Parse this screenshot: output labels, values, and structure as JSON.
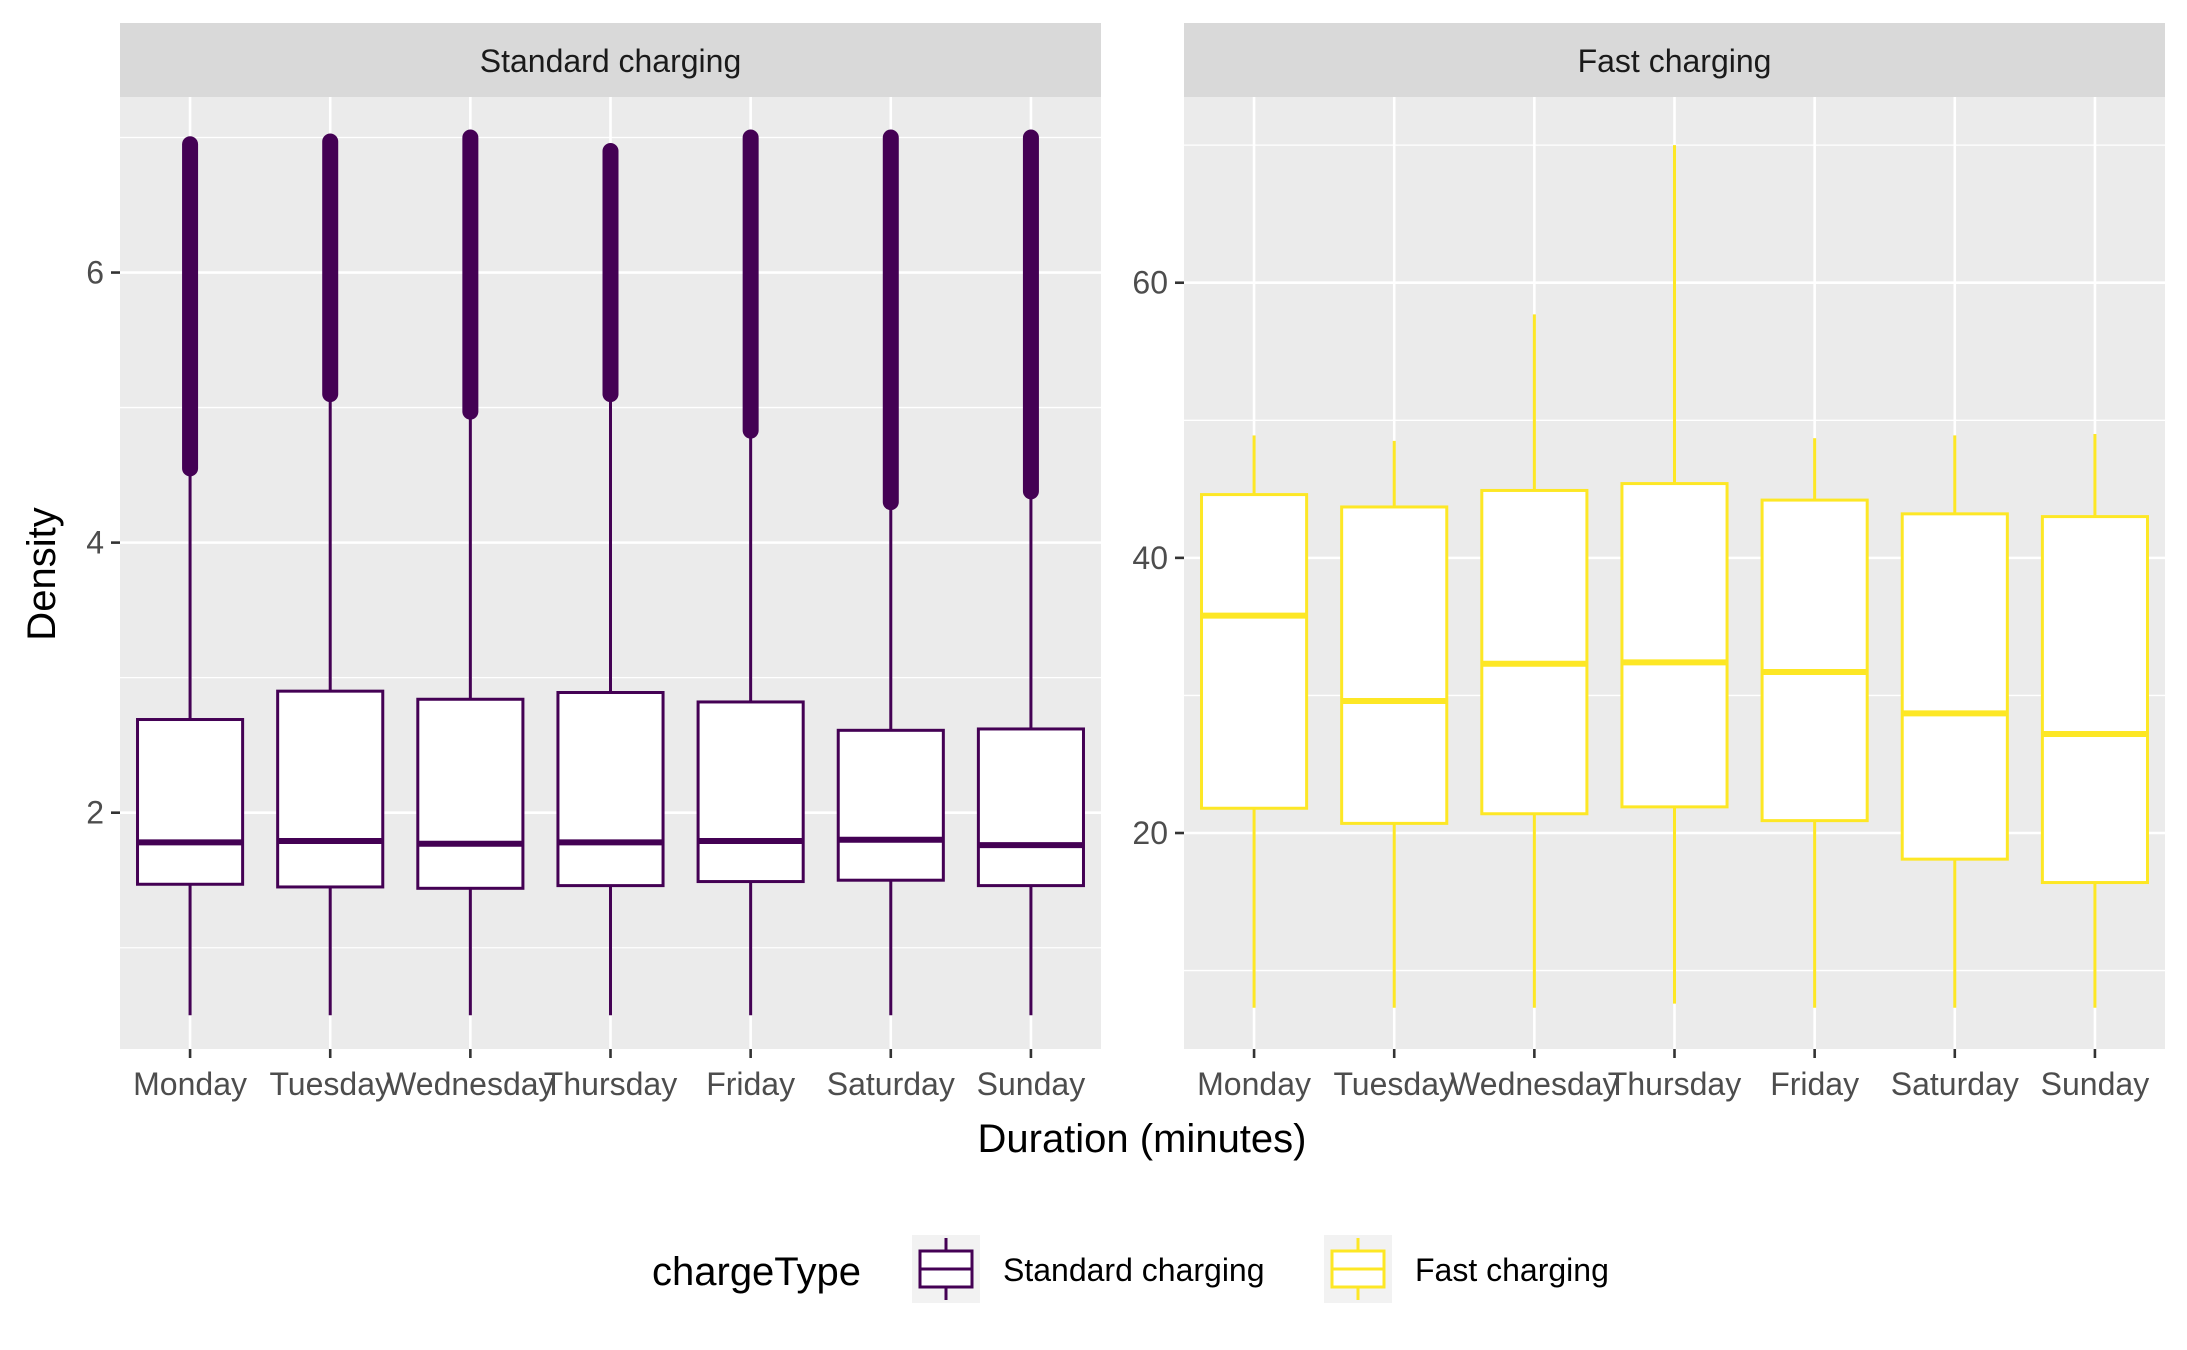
{
  "chart_data": {
    "type": "boxplot",
    "xlabel": "Duration (minutes)",
    "ylabel": "Density",
    "categories": [
      "Monday",
      "Tuesday",
      "Wednesday",
      "Thursday",
      "Friday",
      "Saturday",
      "Sunday"
    ],
    "grid": true,
    "legend": {
      "title": "chargeType",
      "placement": "bottom",
      "entries": [
        {
          "label": "Standard charging",
          "color": "#440154"
        },
        {
          "label": "Fast charging",
          "color": "#fde725"
        }
      ]
    },
    "panels": [
      {
        "strip": "Standard charging",
        "color": "#440154",
        "ylim": [
          0.25,
          7.3
        ],
        "yticks": [
          2,
          4,
          6
        ],
        "yticks_minor": [
          1,
          3,
          5,
          7
        ],
        "boxes": [
          {
            "category": "Monday",
            "min": 0.5,
            "q1": 1.47,
            "median": 1.78,
            "q3": 2.69,
            "max": 4.5,
            "outlier_min": 4.55,
            "outlier_max": 6.95
          },
          {
            "category": "Tuesday",
            "min": 0.5,
            "q1": 1.45,
            "median": 1.79,
            "q3": 2.9,
            "max": 5.05,
            "outlier_min": 5.1,
            "outlier_max": 6.97
          },
          {
            "category": "Wednesday",
            "min": 0.5,
            "q1": 1.44,
            "median": 1.77,
            "q3": 2.84,
            "max": 4.92,
            "outlier_min": 4.97,
            "outlier_max": 7.0
          },
          {
            "category": "Thursday",
            "min": 0.5,
            "q1": 1.46,
            "median": 1.78,
            "q3": 2.89,
            "max": 5.05,
            "outlier_min": 5.1,
            "outlier_max": 6.9
          },
          {
            "category": "Friday",
            "min": 0.5,
            "q1": 1.49,
            "median": 1.79,
            "q3": 2.82,
            "max": 4.78,
            "outlier_min": 4.83,
            "outlier_max": 7.0
          },
          {
            "category": "Saturday",
            "min": 0.5,
            "q1": 1.5,
            "median": 1.8,
            "q3": 2.61,
            "max": 4.25,
            "outlier_min": 4.3,
            "outlier_max": 7.0
          },
          {
            "category": "Sunday",
            "min": 0.5,
            "q1": 1.46,
            "median": 1.76,
            "q3": 2.62,
            "max": 4.33,
            "outlier_min": 4.38,
            "outlier_max": 7.0
          }
        ]
      },
      {
        "strip": "Fast charging",
        "color": "#fde725",
        "ylim": [
          4.3,
          73.5
        ],
        "yticks": [
          20,
          40,
          60
        ],
        "yticks_minor": [
          10,
          30,
          50,
          70
        ],
        "boxes": [
          {
            "category": "Monday",
            "min": 7.3,
            "q1": 21.8,
            "median": 35.8,
            "q3": 44.6,
            "max": 48.9
          },
          {
            "category": "Tuesday",
            "min": 7.3,
            "q1": 20.7,
            "median": 29.6,
            "q3": 43.7,
            "max": 48.5
          },
          {
            "category": "Wednesday",
            "min": 7.3,
            "q1": 21.4,
            "median": 32.3,
            "q3": 44.9,
            "max": 57.7
          },
          {
            "category": "Thursday",
            "min": 7.6,
            "q1": 21.9,
            "median": 32.4,
            "q3": 45.4,
            "max": 70.0
          },
          {
            "category": "Friday",
            "min": 7.3,
            "q1": 20.9,
            "median": 31.7,
            "q3": 44.2,
            "max": 48.7
          },
          {
            "category": "Saturday",
            "min": 7.3,
            "q1": 18.1,
            "median": 28.7,
            "q3": 43.2,
            "max": 48.9
          },
          {
            "category": "Sunday",
            "min": 7.3,
            "q1": 16.4,
            "median": 27.2,
            "q3": 43.0,
            "max": 49.0
          }
        ]
      }
    ]
  }
}
